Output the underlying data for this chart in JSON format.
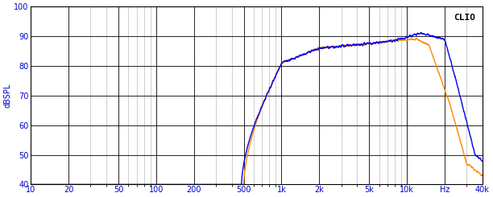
{
  "ylabel": "dBSPL",
  "clio_label": "CLIO",
  "freq_min": 10,
  "freq_max": 40000,
  "y_min": 40,
  "y_max": 100,
  "yticks": [
    40,
    50,
    60,
    70,
    80,
    90,
    100
  ],
  "xtick_labels": [
    "10",
    "20",
    "50",
    "100",
    "200",
    "500",
    "1k",
    "2k",
    "5k",
    "10k",
    "Hz",
    "40k"
  ],
  "xtick_freqs": [
    10,
    20,
    50,
    100,
    200,
    500,
    1000,
    2000,
    5000,
    10000,
    20000,
    40000
  ],
  "background_color": "#ffffff",
  "grid_major_color": "#000000",
  "grid_minor_color": "#aaaaaa",
  "blue_color": "#0000ee",
  "orange_color": "#ff8800",
  "line_width": 1.0
}
